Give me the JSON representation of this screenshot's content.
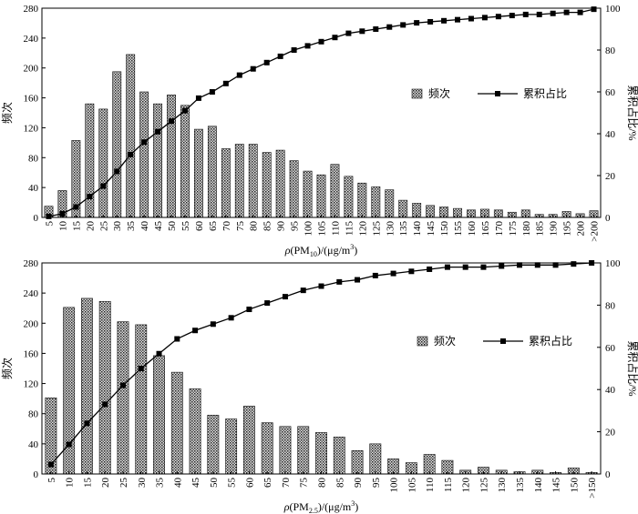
{
  "chart_data": [
    {
      "type": "bar",
      "categories": [
        "5",
        "10",
        "15",
        "20",
        "25",
        "30",
        "35",
        "40",
        "45",
        "50",
        "55",
        "60",
        "65",
        "70",
        "75",
        "80",
        "85",
        "90",
        "95",
        "100",
        "105",
        "110",
        "115",
        "120",
        "125",
        "130",
        "135",
        "140",
        "145",
        "150",
        "155",
        "160",
        "165",
        "170",
        "175",
        "180",
        "185",
        "190",
        "195",
        "200",
        ">200"
      ],
      "series": [
        {
          "name": "频次",
          "type": "bar",
          "axis": "left",
          "color": "#777777",
          "values": [
            15,
            36,
            103,
            152,
            145,
            195,
            218,
            168,
            152,
            164,
            150,
            118,
            122,
            92,
            98,
            98,
            87,
            90,
            76,
            62,
            57,
            71,
            55,
            46,
            41,
            37,
            23,
            19,
            16,
            14,
            12,
            10,
            11,
            10,
            7,
            10,
            4,
            4,
            8,
            5,
            9
          ]
        },
        {
          "name": "累积占比",
          "type": "line",
          "axis": "right",
          "color": "#000000",
          "values": [
            0.5,
            1.8,
            5,
            10,
            15,
            22,
            30,
            36,
            41,
            46,
            51,
            57,
            60,
            64,
            68,
            71,
            74,
            77,
            80,
            82,
            84,
            86,
            88,
            89,
            90,
            91,
            92,
            93,
            93.5,
            94,
            94.5,
            95,
            95.5,
            96,
            96.5,
            97,
            97,
            97.5,
            98,
            98,
            99.5
          ]
        }
      ],
      "xlabel_parts": {
        "rho": "ρ",
        "a": "(PM",
        "sub": "10",
        "b": ")/(μg/m",
        "sup": "3",
        "c": ")"
      },
      "ylabel": "频次",
      "y2label": "累积占比/%",
      "ylim": [
        0,
        280
      ],
      "yticks": [
        "0",
        "40",
        "80",
        "120",
        "160",
        "200",
        "240",
        "280"
      ],
      "y2lim": [
        0,
        100
      ],
      "y2ticks": [
        "0",
        "20",
        "40",
        "60",
        "80",
        "100"
      ],
      "legend": {
        "position": "center-right"
      }
    },
    {
      "type": "bar",
      "categories": [
        "5",
        "10",
        "15",
        "20",
        "25",
        "30",
        "35",
        "40",
        "45",
        "50",
        "55",
        "60",
        "65",
        "70",
        "75",
        "80",
        "85",
        "90",
        "95",
        "100",
        "105",
        "110",
        "115",
        "120",
        "125",
        "130",
        "135",
        "140",
        "145",
        "150",
        ">150"
      ],
      "series": [
        {
          "name": "频次",
          "type": "bar",
          "axis": "left",
          "color": "#777777",
          "values": [
            101,
            221,
            233,
            229,
            202,
            198,
            157,
            135,
            113,
            78,
            73,
            90,
            68,
            63,
            63,
            55,
            49,
            31,
            40,
            20,
            15,
            26,
            18,
            5,
            9,
            5,
            3,
            5,
            2,
            8,
            2
          ]
        },
        {
          "name": "累积占比",
          "type": "line",
          "axis": "right",
          "color": "#000000",
          "values": [
            4.5,
            14,
            24,
            33,
            42,
            50,
            57,
            64,
            68,
            71,
            74,
            78,
            81,
            84,
            87,
            89,
            91,
            92,
            94,
            95,
            96,
            97,
            98,
            98,
            98,
            98.5,
            99,
            99,
            99,
            99.5,
            100
          ]
        }
      ],
      "xlabel_parts": {
        "rho": "ρ",
        "a": "(PM",
        "sub": "2.5",
        "b": ")/(μg/m",
        "sup": "3",
        "c": ")"
      },
      "ylabel": "频次",
      "y2label": "累积占比/%",
      "ylim": [
        0,
        280
      ],
      "yticks": [
        "0",
        "40",
        "80",
        "120",
        "160",
        "200",
        "240",
        "280"
      ],
      "y2lim": [
        0,
        100
      ],
      "y2ticks": [
        "0",
        "20",
        "40",
        "60",
        "80",
        "100"
      ],
      "legend": {
        "position": "center-right"
      }
    }
  ]
}
